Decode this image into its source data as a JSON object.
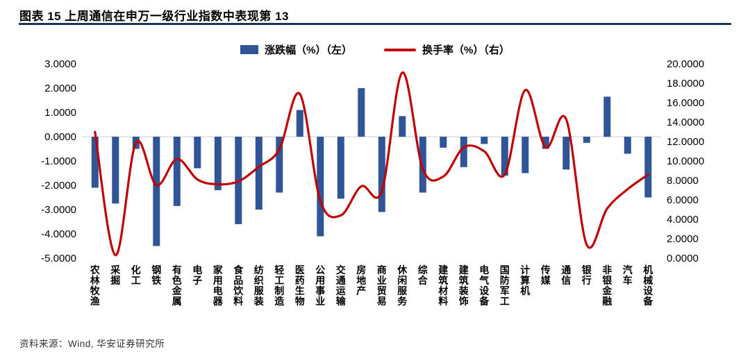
{
  "header": {
    "title": "图表 15 上周通信在申万一级行业指数中表现第 13"
  },
  "legend": {
    "bars": "涨跌幅（%）（左）",
    "line": "换手率（%）（右）"
  },
  "footer": {
    "source": "资料来源：Wind, 华安证券研究所"
  },
  "colors": {
    "bar": "#2F5597",
    "line": "#C00000",
    "rule": "#17375E",
    "zero_line": "#D6D6D6",
    "text": "#000000"
  },
  "chart_data": {
    "type": "bar",
    "subtype": "bar+line combo, dual axis",
    "title": "上周通信在申万一级行业指数中表现第 13",
    "legend_position": "top",
    "grid": false,
    "categories": [
      "农林牧渔",
      "采掘",
      "化工",
      "钢铁",
      "有色金属",
      "电子",
      "家用电器",
      "食品饮料",
      "纺织服装",
      "轻工制造",
      "医药生物",
      "公用事业",
      "交通运输",
      "房地产",
      "商业贸易",
      "休闲服务",
      "综合",
      "建筑材料",
      "建筑装饰",
      "电气设备",
      "国防军工",
      "计算机",
      "传媒",
      "通信",
      "银行",
      "非银金融",
      "汽车",
      "机械设备"
    ],
    "series": [
      {
        "name": "涨跌幅（%）（左）",
        "type": "bar",
        "axis": "left",
        "values": [
          -2.1,
          -2.75,
          -0.5,
          -4.5,
          -2.85,
          -1.3,
          -2.2,
          -3.6,
          -3.0,
          -2.3,
          1.1,
          -4.1,
          -2.55,
          2.0,
          -3.1,
          0.85,
          -2.3,
          -0.45,
          -1.25,
          -0.3,
          -1.6,
          -1.5,
          -0.5,
          -1.35,
          -0.25,
          1.65,
          -0.7,
          -2.5
        ]
      },
      {
        "name": "换手率（%）（右）",
        "type": "line",
        "axis": "right",
        "values": [
          13.0,
          0.3,
          11.9,
          7.5,
          10.2,
          8.1,
          7.6,
          7.9,
          9.4,
          11.2,
          16.9,
          5.9,
          4.4,
          7.4,
          6.9,
          19.1,
          9.2,
          8.4,
          11.4,
          11.0,
          8.6,
          17.3,
          11.4,
          14.3,
          1.4,
          5.1,
          7.1,
          8.6
        ]
      }
    ],
    "left_axis": {
      "label": "涨跌幅（%）",
      "min": -5,
      "max": 3,
      "ticks": [
        "3.0000",
        "2.0000",
        "1.0000",
        "0.0000",
        "-1.0000",
        "-2.0000",
        "-3.0000",
        "-4.0000",
        "-5.0000"
      ]
    },
    "right_axis": {
      "label": "换手率（%）",
      "min": 0,
      "max": 20,
      "ticks": [
        "20.0000",
        "18.0000",
        "16.0000",
        "14.0000",
        "12.0000",
        "10.0000",
        "8.0000",
        "6.0000",
        "4.0000",
        "2.0000",
        "0.0000"
      ]
    }
  }
}
